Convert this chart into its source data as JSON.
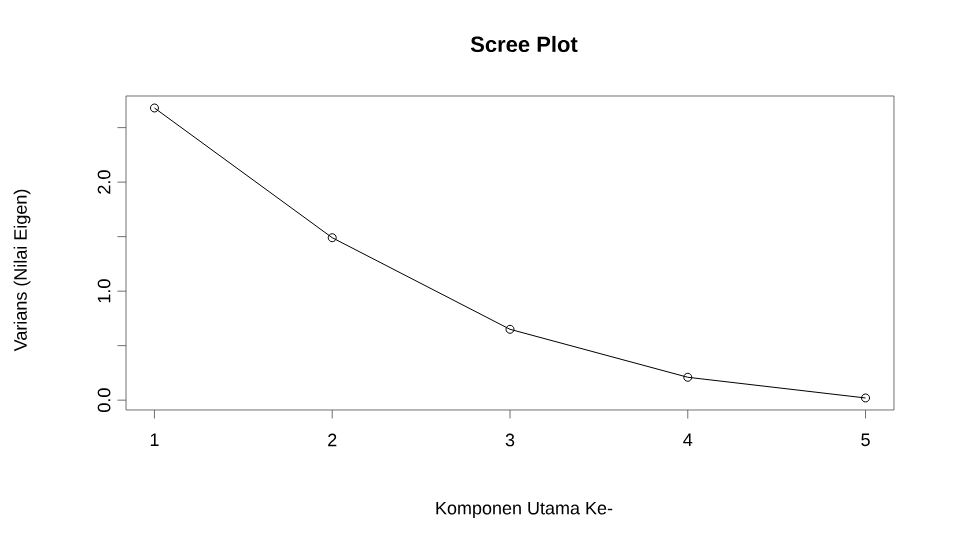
{
  "chart_data": {
    "type": "line",
    "title": "Scree Plot",
    "xlabel": "Komponen Utama Ke-",
    "ylabel": "Varians (Nilai Eigen)",
    "x": [
      1,
      2,
      3,
      4,
      5
    ],
    "series": [
      {
        "color": "#000000",
        "values": [
          2.68,
          1.49,
          0.65,
          0.21,
          0.02
        ]
      }
    ],
    "xlim": [
      0.84,
      5.16
    ],
    "ylim": [
      -0.09,
      2.79
    ],
    "xticks": [
      1,
      2,
      3,
      4,
      5
    ],
    "yticks": [
      {
        "value": 0,
        "label": "0.0"
      },
      {
        "value": 0.5,
        "label": null
      },
      {
        "value": 1,
        "label": "1.0"
      },
      {
        "value": 1.5,
        "label": null
      },
      {
        "value": 2,
        "label": "2.0"
      },
      {
        "value": 2.5,
        "label": null
      }
    ],
    "marker": "circle",
    "line_style": "solid",
    "grid": false
  }
}
